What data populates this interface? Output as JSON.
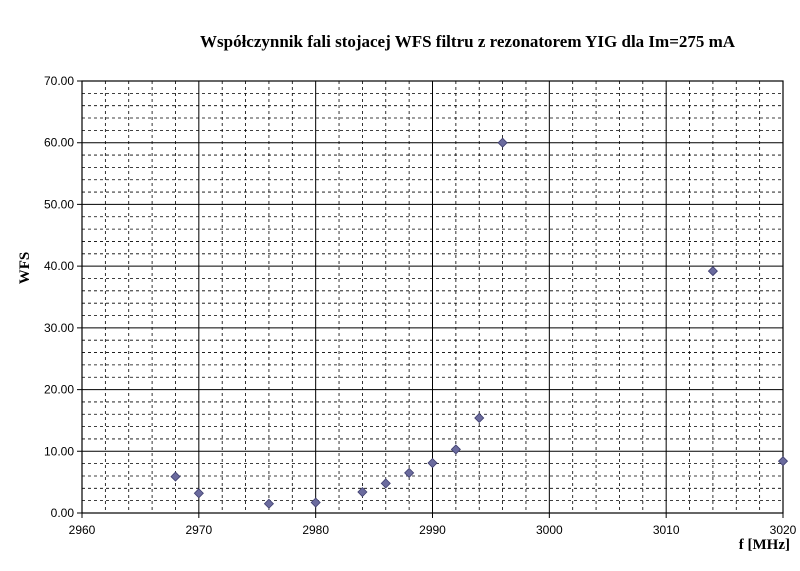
{
  "chart_data": {
    "type": "scatter",
    "title": "Współczynnik fali stojacej WFS filtru z rezonatorem YIG dla Im=275 mA",
    "xlabel": "f [MHz]",
    "ylabel": "WFS",
    "xlim": [
      2960,
      3020
    ],
    "ylim": [
      0,
      70
    ],
    "x_major_step": 10,
    "x_minor_step": 2,
    "y_major_step": 10,
    "y_minor_step": 2,
    "x_ticks": [
      "2960",
      "2970",
      "2980",
      "2990",
      "3000",
      "3010",
      "3020"
    ],
    "y_ticks": [
      "0.00",
      "10.00",
      "20.00",
      "30.00",
      "40.00",
      "50.00",
      "60.00",
      "70.00"
    ],
    "grid": true,
    "legend": "none",
    "marker": "diamond",
    "marker_color": "#6b6b9e",
    "series": [
      {
        "x": [
          2968,
          2970,
          2976,
          2980,
          2984,
          2986,
          2988,
          2990,
          2992,
          2994,
          2996,
          3014,
          3020
        ],
        "y": [
          5.9,
          3.2,
          1.5,
          1.7,
          3.4,
          4.8,
          6.5,
          8.1,
          10.3,
          15.4,
          60.0,
          39.2,
          8.4
        ]
      }
    ]
  }
}
